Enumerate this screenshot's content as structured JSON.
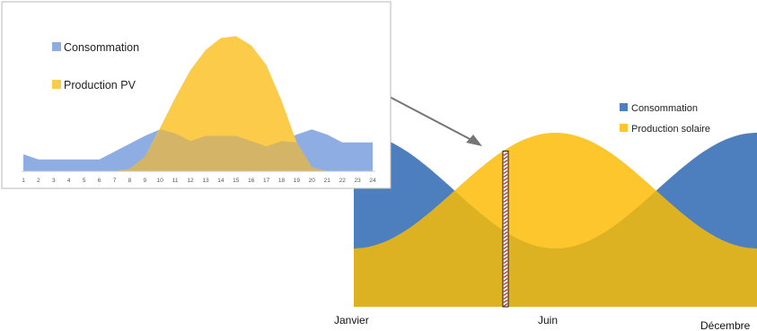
{
  "chart_data": [
    {
      "type": "area",
      "title": "",
      "xlabel": "",
      "ylabel": "",
      "x": [
        1,
        2,
        3,
        4,
        5,
        6,
        7,
        8,
        9,
        10,
        11,
        12,
        13,
        14,
        15,
        16,
        17,
        18,
        19,
        20,
        21,
        22,
        23,
        24
      ],
      "legend_position": "top-left",
      "series": [
        {
          "name": "Consommation",
          "color": "#8eaee3",
          "values": [
            2.6,
            1.8,
            1.8,
            1.8,
            1.8,
            1.8,
            3.0,
            4.2,
            5.4,
            6.4,
            5.8,
            4.6,
            5.4,
            5.4,
            5.4,
            4.6,
            3.8,
            4.6,
            5.6,
            6.4,
            5.6,
            4.4,
            4.4,
            4.4
          ]
        },
        {
          "name": "Production PV",
          "color": "#fbcb49",
          "values": [
            0,
            0,
            0,
            0,
            0,
            0,
            0,
            0.4,
            2.2,
            6.6,
            11.2,
            15.4,
            18.5,
            20.3,
            20.6,
            19.2,
            16.2,
            10.8,
            4.4,
            0.6,
            0,
            0,
            0,
            0
          ]
        }
      ],
      "ylim": [
        0,
        22
      ],
      "grid": false
    },
    {
      "type": "area",
      "title": "",
      "xlabel": "",
      "ylabel": "",
      "categories": [
        "Janvier",
        "Juin",
        "Décembre"
      ],
      "legend_position": "top-right",
      "series": [
        {
          "name": "Consommation",
          "color": "#4d7fbf",
          "shape": "cosine",
          "max": 1.0,
          "min": 0.28
        },
        {
          "name": "Production solaire",
          "color": "#fcc62c",
          "shape": "inverted-cosine",
          "max": 1.0,
          "min": 0.28
        }
      ],
      "marker_at": "Juin (approx. early May)",
      "grid": false
    }
  ],
  "colors": {
    "connector": "#757575",
    "overlap_small": "#d4b467",
    "overlap_large": "#dcb223"
  }
}
